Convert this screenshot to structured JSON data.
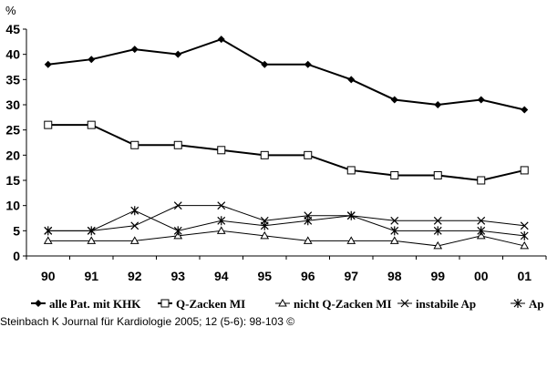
{
  "chart_data": {
    "type": "line",
    "ylabel": "%",
    "ylim": [
      0,
      45
    ],
    "yticks": [
      0,
      5,
      10,
      15,
      20,
      25,
      30,
      35,
      40,
      45
    ],
    "categories": [
      "90",
      "91",
      "92",
      "93",
      "94",
      "95",
      "96",
      "97",
      "98",
      "99",
      "00",
      "01"
    ],
    "grid": false,
    "legend_position": "bottom",
    "series": [
      {
        "name": "alle Pat. mit KHK",
        "marker": "diamond",
        "values": [
          38,
          39,
          41,
          40,
          43,
          38,
          38,
          35,
          31,
          30,
          31,
          29
        ]
      },
      {
        "name": "Q-Zacken MI",
        "marker": "square-open",
        "values": [
          26,
          26,
          22,
          22,
          21,
          20,
          20,
          17,
          16,
          16,
          15,
          17
        ]
      },
      {
        "name": "nicht Q-Zacken MI",
        "marker": "triangle-open",
        "values": [
          3,
          3,
          3,
          4,
          5,
          4,
          3,
          3,
          3,
          2,
          4,
          2
        ]
      },
      {
        "name": "instabile Ap",
        "marker": "x",
        "values": [
          5,
          5,
          6,
          10,
          10,
          7,
          8,
          8,
          7,
          7,
          7,
          6
        ]
      },
      {
        "name": "Ap",
        "marker": "star",
        "values": [
          5,
          5,
          9,
          5,
          7,
          6,
          7,
          8,
          5,
          5,
          5,
          4
        ]
      }
    ]
  },
  "source": "Steinbach K Journal für Kardiologie 2005; 12 (5-6): 98-103 ©"
}
